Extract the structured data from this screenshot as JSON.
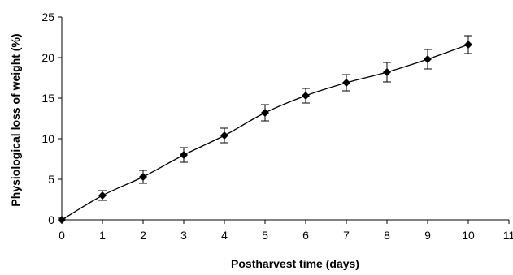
{
  "chart_data": {
    "type": "line",
    "title": "",
    "xlabel": "Postharvest time (days)",
    "ylabel": "Physiological loss of weight (%)",
    "xlim": [
      0,
      11
    ],
    "ylim": [
      0,
      25
    ],
    "xticks": [
      0,
      1,
      2,
      3,
      4,
      5,
      6,
      7,
      8,
      9,
      10,
      11
    ],
    "yticks": [
      0,
      5,
      10,
      15,
      20,
      25
    ],
    "grid": false,
    "legend": "none",
    "marker": "diamond",
    "color": "#000000",
    "series": [
      {
        "x": [
          0,
          1,
          2,
          3,
          4,
          5,
          6,
          7,
          8,
          9,
          10
        ],
        "y": [
          0,
          3.0,
          5.3,
          8.0,
          10.4,
          13.2,
          15.3,
          16.9,
          18.2,
          19.8,
          21.6
        ],
        "error": [
          0.2,
          0.6,
          0.8,
          0.9,
          0.9,
          1.0,
          0.9,
          1.0,
          1.2,
          1.2,
          1.1
        ]
      }
    ]
  }
}
